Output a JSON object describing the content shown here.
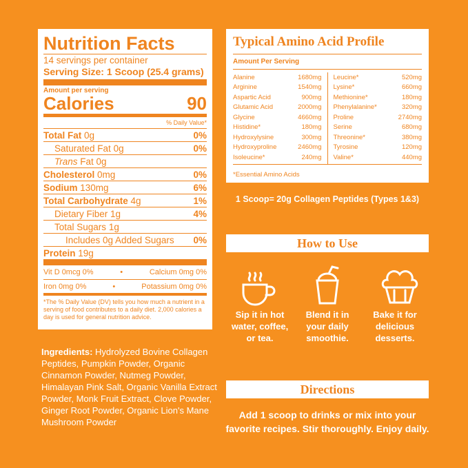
{
  "nutrition": {
    "title": "Nutrition Facts",
    "servings": "14 servings per container",
    "serving_size_label": "Serving Size:",
    "serving_size": "1 Scoop (25.4 grams)",
    "amount_per_serving": "Amount per serving",
    "calories_label": "Calories",
    "calories_value": "90",
    "daily_value_header": "% Daily Value*",
    "rows": [
      {
        "name": "Total Fat",
        "amount": "0g",
        "dv": "0%"
      },
      {
        "name": "Saturated Fat",
        "amount": "0g",
        "dv": "0%"
      },
      {
        "name": "Trans",
        "amount": "Fat 0g"
      },
      {
        "name": "Cholesterol",
        "amount": "0mg",
        "dv": "0%"
      },
      {
        "name": "Sodium",
        "amount": "130mg",
        "dv": "6%"
      },
      {
        "name": "Total Carbohydrate",
        "amount": "4g",
        "dv": "1%"
      },
      {
        "name": "Dietary Fiber",
        "amount": "1g",
        "dv": "4%"
      },
      {
        "name": "Total Sugars",
        "amount": "1g"
      },
      {
        "name": "Includes 0g Added Sugars",
        "dv": "0%"
      },
      {
        "name": "Protein",
        "amount": "19g"
      }
    ],
    "vitamins": [
      "Vit D 0mcg 0%",
      "Calcium 0mg 0%",
      "Iron 0mg 0%",
      "Potassium 0mg 0%"
    ],
    "footnote": "*The % Daily Value (DV) tells you how much a nutrient in a serving of food contributes to a daily diet. 2,000 calories a day is used for general nutrition advice."
  },
  "ingredients": {
    "label": "Ingredients:",
    "text": "Hydrolyzed Bovine Collagen Peptides, Pumpkin Powder, Organic Cinnamon Powder, Nutmeg Powder, Himalayan Pink Salt, Organic Vanilla Extract Powder, Monk Fruit Extract, Clove Powder, Ginger Root Powder, Organic Lion's Mane Mushroom Powder"
  },
  "amino": {
    "title": "Typical Amino Acid Profile",
    "header": "Amount Per Serving",
    "left": [
      [
        "Alanine",
        "1680mg"
      ],
      [
        "Arginine",
        "1540mg"
      ],
      [
        "Aspartic Acid",
        "900mg"
      ],
      [
        "Glutamic Acid",
        "2000mg"
      ],
      [
        "Glycine",
        "4660mg"
      ],
      [
        "Histidine*",
        "180mg"
      ],
      [
        "Hydroxylysine",
        "300mg"
      ],
      [
        "Hydroxyproline",
        "2460mg"
      ],
      [
        "Isoleucine*",
        "240mg"
      ]
    ],
    "right": [
      [
        "Leucine*",
        "520mg"
      ],
      [
        "Lysine*",
        "660mg"
      ],
      [
        "Methionine*",
        "180mg"
      ],
      [
        "Phenylalanine*",
        "320mg"
      ],
      [
        "Proline",
        "2740mg"
      ],
      [
        "Serine",
        "680mg"
      ],
      [
        "Threonine*",
        "380mg"
      ],
      [
        "Tyrosine",
        "120mg"
      ],
      [
        "Valine*",
        "440mg"
      ]
    ],
    "note": "*Essential Amino Acids"
  },
  "collagen_note": "1 Scoop= 20g Collagen Peptides (Types 1&3)",
  "how_to_use": {
    "title": "How to Use",
    "items": [
      "Sip it in hot water, coffee, or tea.",
      "Blend it in your daily smoothie.",
      "Bake it for delicious desserts."
    ]
  },
  "directions": {
    "title": "Directions",
    "text": "Add 1 scoop to drinks or mix into your favorite recipes. Stir thoroughly. Enjoy daily."
  }
}
